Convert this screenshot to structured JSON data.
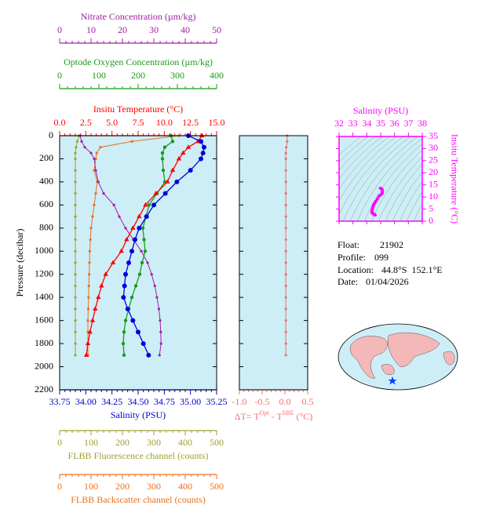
{
  "chart_data": [
    {
      "type": "profile",
      "ylabel": "Pressure (decibar)",
      "ylim": [
        0,
        2200
      ],
      "y_inverted": true,
      "yticks": [
        0,
        200,
        400,
        600,
        800,
        1000,
        1200,
        1400,
        1600,
        1800,
        2000,
        2200
      ],
      "y": [
        0,
        50,
        100,
        150,
        200,
        300,
        400,
        500,
        600,
        700,
        800,
        900,
        1000,
        1100,
        1200,
        1300,
        1400,
        1500,
        1600,
        1700,
        1800,
        1900
      ],
      "axes": [
        {
          "label": "Nitrate Concentration (µm/kg)",
          "color": "#a020a0",
          "side": "top",
          "xlim": [
            0,
            50
          ],
          "xticks": [
            0,
            10,
            20,
            30,
            40,
            50
          ]
        },
        {
          "label": "Optode Oxygen Concentration (µm/kg)",
          "color": "#1a9a1a",
          "side": "top",
          "xlim": [
            0,
            400
          ],
          "xticks": [
            0,
            100,
            200,
            300,
            400
          ]
        },
        {
          "label": "Insitu Temperature (°C)",
          "color": "#ff0000",
          "side": "top",
          "xlim": [
            0,
            15
          ],
          "xticks": [
            {
              "value": 0,
              "label": "0.0"
            },
            {
              "value": 2.5,
              "label": "2.5"
            },
            {
              "value": 5,
              "label": "5.0"
            },
            {
              "value": 7.5,
              "label": "7.5"
            },
            {
              "value": 10,
              "label": "10.0"
            },
            {
              "value": 12.5,
              "label": "12.5"
            },
            {
              "value": 15,
              "label": "15.0"
            }
          ]
        },
        {
          "label": "Salinity (PSU)",
          "color": "#0000cc",
          "side": "bottom",
          "xlim": [
            33.75,
            35.25
          ],
          "xticks": [
            33.75,
            {
              "value": 34,
              "label": "34.00"
            },
            34.25,
            {
              "value": 34.5,
              "label": "34.50"
            },
            34.75,
            {
              "value": 35,
              "label": "35.00"
            },
            35.25
          ]
        },
        {
          "label": "FLBB Fluorescence channel (counts)",
          "color": "#a0a030",
          "side": "bottom",
          "xlim": [
            0,
            500
          ],
          "xticks": [
            0,
            100,
            200,
            300,
            400,
            500
          ]
        },
        {
          "label": "FLBB Backscatter channel (counts)",
          "color": "#e87020",
          "side": "bottom",
          "xlim": [
            0,
            500
          ],
          "xticks": [
            0,
            100,
            200,
            300,
            400,
            500
          ]
        }
      ],
      "series": [
        {
          "axis": 4,
          "color": "#a0a030",
          "marker": "dot",
          "values": [
            62,
            56,
            52,
            50,
            50,
            50,
            50,
            50,
            50,
            50,
            50,
            50,
            50,
            50,
            50,
            50,
            50,
            50,
            50,
            50,
            50,
            50
          ]
        },
        {
          "axis": 5,
          "color": "#e87020",
          "marker": "dot",
          "values": [
            380,
            230,
            130,
            118,
            115,
            110,
            120,
            115,
            110,
            105,
            100,
            98,
            96,
            95,
            94,
            93,
            92,
            91,
            90,
            90,
            90,
            90
          ]
        },
        {
          "axis": 0,
          "color": "#a020a0",
          "marker": "dot",
          "values": [
            6.5,
            7,
            8,
            10,
            11,
            11.5,
            12.3,
            14,
            17.3,
            19,
            21,
            23.5,
            26,
            28,
            29.3,
            30.3,
            31,
            31.6,
            32,
            32.2,
            32.3,
            31.8
          ]
        },
        {
          "axis": 1,
          "color": "#1a9a1a",
          "marker": "circle",
          "values": [
            284,
            288,
            268,
            262,
            262,
            264,
            268,
            248,
            228,
            220,
            212,
            215,
            218,
            210,
            204,
            194,
            184,
            176,
            168,
            164,
            162,
            164
          ]
        },
        {
          "axis": 2,
          "color": "#ff0000",
          "marker": "triangle",
          "values": [
            13.6,
            13.2,
            12.3,
            11.8,
            11.4,
            10.8,
            10.3,
            9.2,
            8.2,
            7.6,
            7.0,
            6.4,
            5.9,
            5.1,
            4.4,
            4.0,
            3.7,
            3.4,
            3.15,
            2.9,
            2.7,
            2.55
          ]
        },
        {
          "axis": 3,
          "color": "#0000dd",
          "marker": "bigcircle",
          "values": [
            34.98,
            35.1,
            35.13,
            35.12,
            35.1,
            35.0,
            34.87,
            34.76,
            34.65,
            34.58,
            34.51,
            34.47,
            34.44,
            34.41,
            34.38,
            34.37,
            34.36,
            34.4,
            34.45,
            34.5,
            34.55,
            34.6
          ]
        }
      ]
    },
    {
      "type": "profile",
      "ylim": [
        0,
        2200
      ],
      "y_inverted": true,
      "yticks": [
        0,
        200,
        400,
        600,
        800,
        1000,
        1200,
        1400,
        1600,
        1800,
        2000,
        2200
      ],
      "y": [
        0,
        50,
        100,
        150,
        200,
        300,
        400,
        500,
        600,
        700,
        800,
        900,
        1000,
        1100,
        1200,
        1300,
        1400,
        1500,
        1600,
        1700,
        1800,
        1900
      ],
      "axes": [
        {
          "label_parts": [
            "ΔT= T",
            "Opt",
            " - T",
            "SBE",
            " (°C)"
          ],
          "color": "#f07070",
          "side": "bottom",
          "xlim": [
            -1.0,
            0.5
          ],
          "xticks": [
            {
              "value": -1,
              "label": "-1.0"
            },
            {
              "value": -0.5,
              "label": "-0.5"
            },
            {
              "value": 0,
              "label": "0.0"
            },
            {
              "value": 0.5,
              "label": "0.5"
            }
          ]
        }
      ],
      "series": [
        {
          "axis": 0,
          "color": "#f07070",
          "marker": "dot",
          "values": [
            0.05,
            0.05,
            0.03,
            0.02,
            0.02,
            0.02,
            0.02,
            0.02,
            0.02,
            0.02,
            0.02,
            0.02,
            0.02,
            0.02,
            0.02,
            0.02,
            0.02,
            0.02,
            0.02,
            0.02,
            0.02,
            0.02
          ]
        }
      ]
    },
    {
      "type": "ts",
      "xlabel": "Salinity (PSU)",
      "ylabel": "Insitu Temperature (°C)",
      "color": "#ff00ff",
      "xlim": [
        32,
        38
      ],
      "xticks": [
        32,
        33,
        34,
        35,
        36,
        37,
        38
      ],
      "ylim": [
        0,
        35
      ],
      "yticks": [
        0,
        5,
        10,
        15,
        20,
        25,
        30,
        35
      ],
      "x": [
        34.98,
        35.1,
        35.13,
        35.12,
        35.1,
        35.0,
        34.87,
        34.76,
        34.65,
        34.58,
        34.51,
        34.47,
        34.44,
        34.41,
        34.38,
        34.37,
        34.36,
        34.4,
        34.45,
        34.5,
        34.55,
        34.6
      ],
      "values": [
        13.6,
        13.2,
        12.3,
        11.8,
        11.4,
        10.8,
        10.3,
        9.2,
        8.2,
        7.6,
        7.0,
        6.4,
        5.9,
        5.1,
        4.4,
        4.0,
        3.7,
        3.4,
        3.15,
        2.9,
        2.7,
        2.55
      ]
    }
  ],
  "info": [
    {
      "label": "Float:",
      "value": "21902"
    },
    {
      "label": "Profile:",
      "value": "099"
    },
    {
      "label": "Location:",
      "value": "44.8°S  152.1°E"
    },
    {
      "label": "Date:",
      "value": "01/04/2026"
    }
  ]
}
